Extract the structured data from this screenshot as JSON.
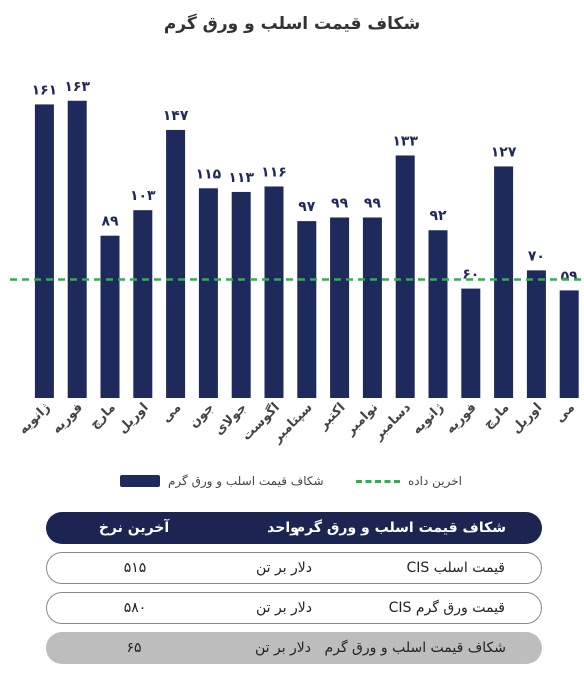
{
  "chart_data": {
    "type": "bar",
    "title": "شکاف قیمت اسلب و ورق گرم",
    "categories": [
      "ژانویه",
      "فوریه",
      "مارچ",
      "اوریل",
      "می",
      "جون",
      "جولای",
      "اگوست",
      "سپتامبر",
      "اکتبر",
      "نوامبر",
      "دسامبر",
      "ژانویه",
      "فوریه",
      "مارچ",
      "اوریل",
      "می"
    ],
    "value_labels": [
      "۱۶۱",
      "۱۶۳",
      "۸۹",
      "۱۰۳",
      "۱۴۷",
      "۱۱۵",
      "۱۱۳",
      "۱۱۶",
      "۹۷",
      "۹۹",
      "۹۹",
      "۱۳۳",
      "۹۲",
      "۶۰",
      "۱۲۷",
      "۷۰",
      "۵۹"
    ],
    "series": [
      {
        "name": "شکاف قیمت اسلب و ورق گرم",
        "values": [
          161,
          163,
          89,
          103,
          147,
          115,
          113,
          116,
          97,
          99,
          99,
          133,
          92,
          60,
          127,
          70,
          59
        ]
      }
    ],
    "reference_line": {
      "name": "اخرین داده",
      "value": 65,
      "color": "#2bb24c",
      "style": "dashed"
    },
    "ylim": [
      0,
      170
    ],
    "grid": false,
    "legend_position": "bottom",
    "bar_color": "#1f2a5c"
  },
  "table": {
    "header": {
      "name": "شکاف قیمت اسلب و ورق گرم",
      "unit": "واحد",
      "value": "آخرین نرخ"
    },
    "rows": [
      {
        "name": "قیمت اسلب CIS",
        "unit": "دلار بر تن",
        "value": "۵۱۵"
      },
      {
        "name": "قیمت ورق گرم CIS",
        "unit": "دلار بر تن",
        "value": "۵۸۰"
      },
      {
        "name": "شکاف قیمت اسلب و ورق گرم",
        "unit": "دلار بر تن",
        "value": "۶۵"
      }
    ]
  }
}
